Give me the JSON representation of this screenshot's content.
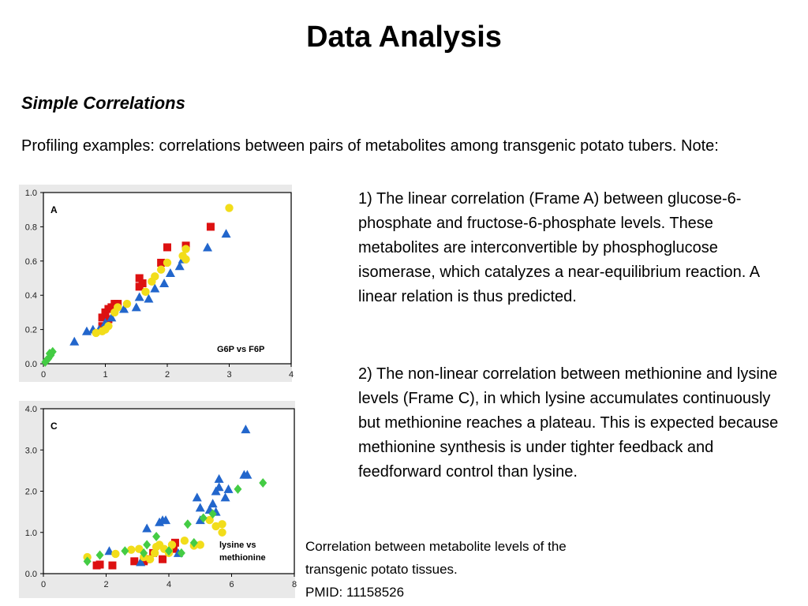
{
  "slide": {
    "title": "Data Analysis",
    "subtitle": "Simple Correlations",
    "intro": "Profiling examples: correlations between pairs of metabolites among transgenic potato tubers.  Note:",
    "note1": "1) The linear correlation (Frame A) between glucose-6-phosphate and fructose-6-phosphate levels.  These metabolites are interconvertible by phosphoglucose isomerase, which catalyzes a near-equilibrium reaction. A linear relation is thus predicted.",
    "note2": "2) The non-linear correlation between methionine and lysine levels (Frame C), in which lysine accumulates continuously but methionine reaches a plateau. This is expected because methionine synthesis is under tighter feedback and feedforward control than lysine.",
    "caption": {
      "line1": "Correlation between metabolite levels of the",
      "line2": "transgenic potato tissues.",
      "line3": "PMID: 11158526"
    }
  },
  "colors": {
    "red": "#dd1111",
    "blue": "#2266cc",
    "yellow": "#f2dd1a",
    "green": "#44cc44"
  },
  "chart_data": [
    {
      "type": "scatter",
      "panel_label": "A",
      "inset_label": "G6P vs F6P",
      "xlim": [
        0,
        4
      ],
      "ylim": [
        0,
        1
      ],
      "x_ticks": [
        "0",
        "1",
        "2",
        "3",
        "4"
      ],
      "y_ticks": [
        "0.0",
        "0.2",
        "0.4",
        "0.6",
        "0.8",
        "1.0"
      ],
      "series": [
        {
          "marker": "square",
          "color": "red",
          "points": [
            [
              0.95,
              0.27
            ],
            [
              1.0,
              0.3
            ],
            [
              1.05,
              0.32
            ],
            [
              1.1,
              0.33
            ],
            [
              1.15,
              0.35
            ],
            [
              1.2,
              0.35
            ],
            [
              1.05,
              0.26
            ],
            [
              1.55,
              0.45
            ],
            [
              1.55,
              0.5
            ],
            [
              1.6,
              0.47
            ],
            [
              1.9,
              0.59
            ],
            [
              2.0,
              0.68
            ],
            [
              2.3,
              0.69
            ],
            [
              2.7,
              0.8
            ],
            [
              0.95,
              0.22
            ]
          ]
        },
        {
          "marker": "triangle",
          "color": "blue",
          "points": [
            [
              0.5,
              0.13
            ],
            [
              0.7,
              0.19
            ],
            [
              0.8,
              0.2
            ],
            [
              0.9,
              0.2
            ],
            [
              1.0,
              0.24
            ],
            [
              1.1,
              0.27
            ],
            [
              1.3,
              0.32
            ],
            [
              1.5,
              0.33
            ],
            [
              1.55,
              0.39
            ],
            [
              1.7,
              0.38
            ],
            [
              1.8,
              0.44
            ],
            [
              1.95,
              0.47
            ],
            [
              2.05,
              0.53
            ],
            [
              2.2,
              0.57
            ],
            [
              2.25,
              0.61
            ],
            [
              2.65,
              0.68
            ],
            [
              2.95,
              0.76
            ]
          ]
        },
        {
          "marker": "circle",
          "color": "yellow",
          "points": [
            [
              0.85,
              0.18
            ],
            [
              0.95,
              0.19
            ],
            [
              1.0,
              0.2
            ],
            [
              1.05,
              0.22
            ],
            [
              1.15,
              0.3
            ],
            [
              1.35,
              0.35
            ],
            [
              1.65,
              0.42
            ],
            [
              1.75,
              0.48
            ],
            [
              1.8,
              0.51
            ],
            [
              1.9,
              0.55
            ],
            [
              2.0,
              0.59
            ],
            [
              2.25,
              0.63
            ],
            [
              2.3,
              0.61
            ],
            [
              2.3,
              0.67
            ],
            [
              3.0,
              0.91
            ],
            [
              1.2,
              0.33
            ]
          ]
        },
        {
          "marker": "diamond",
          "color": "green",
          "points": [
            [
              0.03,
              0.01
            ],
            [
              0.08,
              0.03
            ],
            [
              0.12,
              0.05
            ],
            [
              0.15,
              0.07
            ],
            [
              0.1,
              0.06
            ],
            [
              0.05,
              0.02
            ]
          ]
        }
      ]
    },
    {
      "type": "scatter",
      "panel_label": "C",
      "inset_label_line1": "lysine vs",
      "inset_label_line2": "methionine",
      "xlim": [
        0,
        8
      ],
      "ylim": [
        0,
        4
      ],
      "x_ticks": [
        "0",
        "2",
        "4",
        "6",
        "8"
      ],
      "y_ticks": [
        "0.0",
        "1.0",
        "2.0",
        "3.0",
        "4.0"
      ],
      "series": [
        {
          "marker": "square",
          "color": "red",
          "points": [
            [
              1.7,
              0.2
            ],
            [
              1.8,
              0.22
            ],
            [
              2.2,
              0.2
            ],
            [
              2.9,
              0.3
            ],
            [
              3.3,
              0.35
            ],
            [
              3.8,
              0.35
            ],
            [
              4.2,
              0.75
            ],
            [
              4.15,
              0.6
            ],
            [
              3.5,
              0.5
            ],
            [
              3.2,
              0.3
            ]
          ]
        },
        {
          "marker": "triangle",
          "color": "blue",
          "points": [
            [
              2.1,
              0.55
            ],
            [
              3.1,
              0.28
            ],
            [
              3.3,
              1.1
            ],
            [
              3.7,
              1.25
            ],
            [
              3.8,
              1.3
            ],
            [
              4.3,
              0.5
            ],
            [
              4.9,
              1.85
            ],
            [
              5.0,
              1.3
            ],
            [
              5.0,
              1.6
            ],
            [
              5.3,
              1.55
            ],
            [
              5.4,
              1.7
            ],
            [
              5.5,
              2.0
            ],
            [
              5.6,
              2.3
            ],
            [
              5.6,
              2.1
            ],
            [
              5.5,
              1.5
            ],
            [
              5.9,
              2.05
            ],
            [
              6.4,
              2.4
            ],
            [
              6.5,
              2.4
            ],
            [
              6.45,
              3.5
            ],
            [
              5.8,
              1.85
            ],
            [
              3.9,
              1.3
            ]
          ]
        },
        {
          "marker": "circle",
          "color": "yellow",
          "points": [
            [
              1.4,
              0.4
            ],
            [
              2.3,
              0.48
            ],
            [
              2.8,
              0.58
            ],
            [
              3.05,
              0.6
            ],
            [
              3.2,
              0.4
            ],
            [
              3.4,
              0.35
            ],
            [
              3.55,
              0.5
            ],
            [
              3.6,
              0.65
            ],
            [
              3.7,
              0.7
            ],
            [
              3.85,
              0.6
            ],
            [
              4.0,
              0.55
            ],
            [
              4.1,
              0.7
            ],
            [
              4.5,
              0.8
            ],
            [
              4.8,
              0.68
            ],
            [
              5.0,
              0.7
            ],
            [
              5.3,
              1.3
            ],
            [
              5.5,
              1.15
            ],
            [
              5.7,
              1.2
            ],
            [
              5.7,
              1.0
            ],
            [
              4.0,
              0.5
            ]
          ]
        },
        {
          "marker": "diamond",
          "color": "green",
          "points": [
            [
              1.4,
              0.3
            ],
            [
              1.8,
              0.45
            ],
            [
              2.6,
              0.55
            ],
            [
              3.3,
              0.7
            ],
            [
              3.6,
              0.9
            ],
            [
              4.0,
              0.55
            ],
            [
              4.4,
              0.5
            ],
            [
              4.6,
              1.2
            ],
            [
              5.1,
              1.35
            ],
            [
              5.4,
              1.45
            ],
            [
              6.2,
              2.05
            ],
            [
              7.0,
              2.2
            ],
            [
              4.8,
              0.75
            ],
            [
              3.2,
              0.5
            ]
          ]
        }
      ]
    }
  ]
}
